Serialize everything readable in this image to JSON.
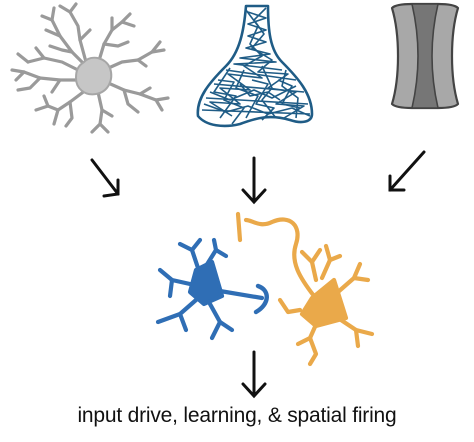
{
  "caption": "input drive, learning, & spatial firing",
  "colors": {
    "astrocyte_fill": "#c6c6c6",
    "astrocyte_stroke": "#9a9a9a",
    "net_stroke": "#1f5c86",
    "cylinder_outer": "#9c9c9c",
    "cylinder_inner": "#707070",
    "cylinder_stroke": "#444444",
    "blue_neuron": "#2f6eb5",
    "orange_neuron": "#eaa94a",
    "arrow": "#111111"
  },
  "icons": {
    "top_left": "astrocyte-icon",
    "top_middle": "perineuronal-net-icon",
    "top_right": "gap-junction-icon",
    "bottom": "neuron-pair-icon"
  }
}
